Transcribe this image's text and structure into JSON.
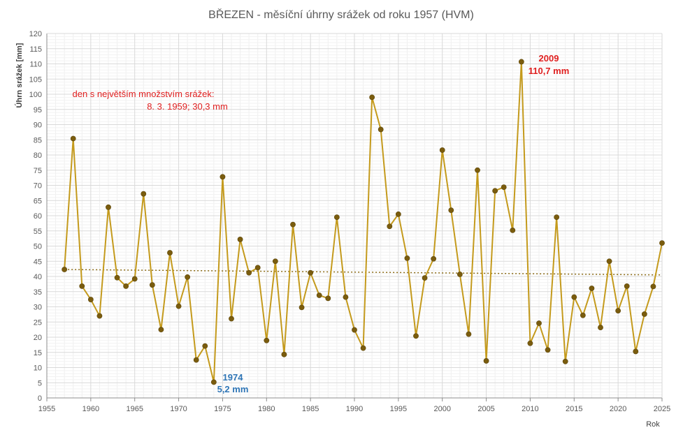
{
  "chart_data": {
    "type": "line",
    "title": "BŘEZEN - měsíční úhrny srážek od roku 1957 (HVM)",
    "xlabel": "Rok",
    "ylabel": "Úhrn srážek [mm]",
    "xlim": [
      1955,
      2025
    ],
    "ylim": [
      0,
      120
    ],
    "x_ticks": [
      1955,
      1960,
      1965,
      1970,
      1975,
      1980,
      1985,
      1990,
      1995,
      2000,
      2005,
      2010,
      2015,
      2020,
      2025
    ],
    "y_ticks": [
      0,
      5,
      10,
      15,
      20,
      25,
      30,
      35,
      40,
      45,
      50,
      55,
      60,
      65,
      70,
      75,
      80,
      85,
      90,
      95,
      100,
      105,
      110,
      115,
      120
    ],
    "grid": true,
    "series": [
      {
        "color": "#c49a1c",
        "marker_color": "#7a5c0e",
        "x": [
          1957,
          1958,
          1959,
          1960,
          1961,
          1962,
          1963,
          1964,
          1965,
          1966,
          1967,
          1968,
          1969,
          1970,
          1971,
          1972,
          1973,
          1974,
          1975,
          1976,
          1977,
          1978,
          1979,
          1980,
          1981,
          1982,
          1983,
          1984,
          1985,
          1986,
          1987,
          1988,
          1989,
          1990,
          1991,
          1992,
          1993,
          1994,
          1995,
          1996,
          1997,
          1998,
          1999,
          2000,
          2001,
          2002,
          2003,
          2004,
          2005,
          2006,
          2007,
          2008,
          2009,
          2010,
          2011,
          2012,
          2013,
          2014,
          2015,
          2016,
          2017,
          2018,
          2019,
          2020,
          2021,
          2022,
          2023,
          2024,
          2025
        ],
        "values": [
          42.3,
          85.4,
          36.8,
          32.4,
          27.0,
          62.8,
          39.6,
          36.8,
          39.2,
          67.2,
          37.2,
          22.5,
          47.8,
          30.2,
          39.8,
          12.5,
          17.1,
          5.2,
          72.8,
          26.1,
          52.2,
          41.2,
          42.9,
          18.9,
          45.0,
          14.3,
          57.1,
          29.8,
          41.2,
          33.8,
          32.8,
          59.5,
          33.2,
          22.4,
          16.4,
          99.0,
          88.4,
          56.5,
          60.5,
          46.0,
          20.4,
          39.5,
          45.8,
          81.6,
          61.8,
          40.7,
          21.0,
          75.0,
          12.2,
          68.2,
          69.4,
          55.2,
          110.7,
          18.0,
          24.6,
          15.8,
          59.5,
          12.0,
          33.2,
          27.2,
          36.1,
          23.2,
          45.0,
          28.7,
          36.8,
          15.3,
          27.6,
          36.7,
          51.0
        ]
      }
    ],
    "trendline": {
      "style": "dotted",
      "color": "#8a6a14",
      "x": [
        1957,
        2025
      ],
      "values": [
        42.3,
        40.5
      ]
    },
    "annotations": {
      "max_year": "2009",
      "max_value": "110,7 mm",
      "min_year": "1974",
      "min_value": "5,2 mm",
      "max_day_line1": "den s největším množstvím srážek:",
      "max_day_line2": "8. 3. 1959;  30,3 mm"
    },
    "colors": {
      "max": "#e02020",
      "min": "#2e75b6",
      "note": "#e02020"
    }
  }
}
